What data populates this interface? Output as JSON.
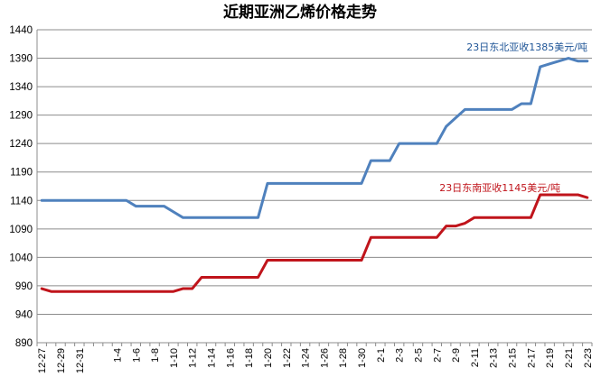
{
  "chart_data": {
    "type": "line",
    "title": "近期亚洲乙烯价格走势",
    "ylim": [
      890,
      1440
    ],
    "yticks": [
      890,
      940,
      990,
      1040,
      1090,
      1140,
      1190,
      1240,
      1290,
      1340,
      1390,
      1440
    ],
    "grid": true,
    "xtick_labels": [
      "12-27",
      "12-29",
      "12-31",
      "1-4",
      "1-6",
      "1-8",
      "1-10",
      "1-12",
      "1-14",
      "1-16",
      "1-18",
      "1-20",
      "1-22",
      "1-24",
      "1-26",
      "1-28",
      "1-30",
      "2-1",
      "2-3",
      "2-5",
      "2-7",
      "2-9",
      "2-11",
      "2-13",
      "2-15",
      "2-17",
      "2-19",
      "2-21",
      "2-23"
    ],
    "x": [
      "12-27",
      "12-28",
      "12-29",
      "12-30",
      "12-31",
      "1-1",
      "1-2",
      "1-3",
      "1-4",
      "1-5",
      "1-6",
      "1-7",
      "1-8",
      "1-9",
      "1-10",
      "1-11",
      "1-12",
      "1-13",
      "1-14",
      "1-15",
      "1-16",
      "1-17",
      "1-18",
      "1-19",
      "1-20",
      "1-21",
      "1-22",
      "1-23",
      "1-24",
      "1-25",
      "1-26",
      "1-27",
      "1-28",
      "1-29",
      "1-30",
      "1-31",
      "2-1",
      "2-2",
      "2-3",
      "2-4",
      "2-5",
      "2-6",
      "2-7",
      "2-8",
      "2-9",
      "2-10",
      "2-11",
      "2-12",
      "2-13",
      "2-14",
      "2-15",
      "2-16",
      "2-17",
      "2-18",
      "2-19",
      "2-20",
      "2-21",
      "2-22",
      "2-23"
    ],
    "series": [
      {
        "color": "#4f81bd",
        "values": [
          1140,
          1140,
          1140,
          1140,
          1140,
          1140,
          1140,
          1140,
          1140,
          1140,
          1130,
          1130,
          1130,
          1130,
          1120,
          1110,
          1110,
          1110,
          1110,
          1110,
          1110,
          1110,
          1110,
          1110,
          1170,
          1170,
          1170,
          1170,
          1170,
          1170,
          1170,
          1170,
          1170,
          1170,
          1170,
          1210,
          1210,
          1210,
          1240,
          1240,
          1240,
          1240,
          1240,
          1270,
          1285,
          1300,
          1300,
          1300,
          1300,
          1300,
          1300,
          1310,
          1310,
          1375,
          1380,
          1385,
          1390,
          1385,
          1385
        ]
      },
      {
        "color": "#c0141b",
        "values": [
          985,
          980,
          980,
          980,
          980,
          980,
          980,
          980,
          980,
          980,
          980,
          980,
          980,
          980,
          980,
          985,
          985,
          1005,
          1005,
          1005,
          1005,
          1005,
          1005,
          1005,
          1035,
          1035,
          1035,
          1035,
          1035,
          1035,
          1035,
          1035,
          1035,
          1035,
          1035,
          1075,
          1075,
          1075,
          1075,
          1075,
          1075,
          1075,
          1075,
          1095,
          1095,
          1100,
          1110,
          1110,
          1110,
          1110,
          1110,
          1110,
          1110,
          1150,
          1150,
          1150,
          1150,
          1150,
          1145
        ]
      }
    ],
    "annotations": [
      {
        "text": "23日东北亚收1385美元/吨",
        "color": "#1f5597"
      },
      {
        "text": "23日东南亚收1145美元/吨",
        "color": "#c0141b"
      }
    ]
  }
}
